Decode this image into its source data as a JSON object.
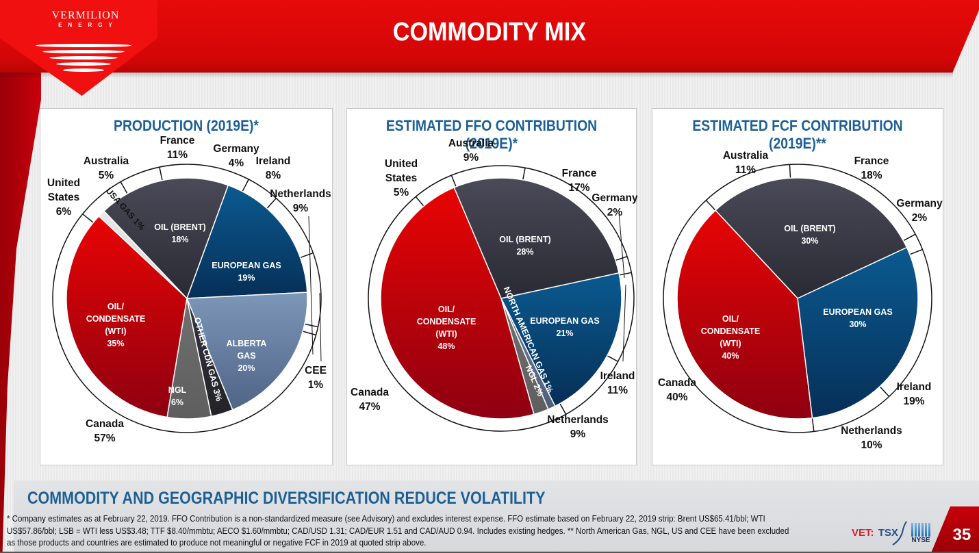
{
  "brand": {
    "name": "VERMILION",
    "sub": "ENERGY"
  },
  "header": {
    "title": "COMMODITY MIX"
  },
  "colors": {
    "title_blue": "#1c5f96",
    "header_red": "#dd0808",
    "oil_condensate": "#d10000",
    "oil_brent": "#3c3c4a",
    "european_gas": "#0d4677",
    "alberta_gas": "#6d84a6",
    "ngl": "#6b6b6b",
    "other_cdn_gas": "#2e2e38",
    "usa_gas": "#e4e4e4",
    "na_gas": "#5b6c86"
  },
  "chart_data": [
    {
      "type": "pie",
      "title": "PRODUCTION (2019E)*",
      "inner_series": {
        "name": "commodity",
        "slices": [
          {
            "label": "USA GAS",
            "value": 1,
            "display": "USA GAS 1%",
            "color_key": "usa_gas",
            "label_style": "rotated-dark"
          },
          {
            "label": "OIL (BRENT)",
            "value": 18,
            "display": "18%",
            "color_key": "oil_brent"
          },
          {
            "label": "EUROPEAN GAS",
            "value": 19,
            "display": "19%",
            "color_key": "european_gas"
          },
          {
            "label": "ALBERTA GAS",
            "value": 20,
            "display": "20%",
            "color_key": "alberta_gas"
          },
          {
            "label": "OTHER CDN GAS",
            "value": 3,
            "display": "OTHER CDN GAS 3%",
            "color_key": "other_cdn_gas",
            "label_style": "rotated"
          },
          {
            "label": "NGL",
            "value": 6,
            "display": "6%",
            "color_key": "ngl"
          },
          {
            "label": "OIL/ CONDENSATE (WTI)",
            "value": 35,
            "display": "35%",
            "color_key": "oil_condensate"
          }
        ]
      },
      "outer_series": {
        "name": "country",
        "slices": [
          {
            "label": "United States",
            "value": 6
          },
          {
            "label": "Australia",
            "value": 5
          },
          {
            "label": "France",
            "value": 11
          },
          {
            "label": "Germany",
            "value": 4
          },
          {
            "label": "Ireland",
            "value": 8
          },
          {
            "label": "Netherlands",
            "value": 9
          },
          {
            "label": "CEE",
            "value": 1
          },
          {
            "label": "Canada",
            "value": 57
          }
        ]
      }
    },
    {
      "type": "pie",
      "title": "ESTIMATED FFO CONTRIBUTION (2019E)*",
      "inner_series": {
        "name": "commodity",
        "slices": [
          {
            "label": "OIL (BRENT)",
            "value": 28,
            "display": "28%",
            "color_key": "oil_brent"
          },
          {
            "label": "EUROPEAN GAS",
            "value": 21,
            "display": "21%",
            "color_key": "european_gas"
          },
          {
            "label": "NORTH AMERICAN GAS",
            "value": 1,
            "display": "NORTH AMERICAN GAS 1%",
            "color_key": "na_gas",
            "label_style": "rotated"
          },
          {
            "label": "NGL",
            "value": 2,
            "display": "NGL 2%",
            "color_key": "ngl",
            "label_style": "rotated"
          },
          {
            "label": "OIL/ CONDENSATE (WTI)",
            "value": 48,
            "display": "48%",
            "color_key": "oil_condensate"
          }
        ]
      },
      "outer_series": {
        "name": "country",
        "slices": [
          {
            "label": "Australia",
            "value": 9
          },
          {
            "label": "France",
            "value": 17
          },
          {
            "label": "Germany",
            "value": 2
          },
          {
            "label": "Ireland",
            "value": 11
          },
          {
            "label": "Netherlands",
            "value": 9
          },
          {
            "label": "Canada",
            "value": 47
          },
          {
            "label": "United States",
            "value": 5
          }
        ]
      }
    },
    {
      "type": "pie",
      "title": "ESTIMATED FCF CONTRIBUTION (2019E)**",
      "inner_series": {
        "name": "commodity",
        "slices": [
          {
            "label": "OIL (BRENT)",
            "value": 30,
            "display": "30%",
            "color_key": "oil_brent"
          },
          {
            "label": "EUROPEAN GAS",
            "value": 30,
            "display": "30%",
            "color_key": "european_gas"
          },
          {
            "label": "OIL/ CONDENSATE (WTI)",
            "value": 40,
            "display": "40%",
            "color_key": "oil_condensate"
          }
        ]
      },
      "outer_series": {
        "name": "country",
        "slices": [
          {
            "label": "Australia",
            "value": 11
          },
          {
            "label": "France",
            "value": 18
          },
          {
            "label": "Germany",
            "value": 2
          },
          {
            "label": "Ireland",
            "value": 19
          },
          {
            "label": "Netherlands",
            "value": 10
          },
          {
            "label": "Canada",
            "value": 40
          }
        ]
      }
    }
  ],
  "panels": [
    {
      "title": "PRODUCTION (2019E)*",
      "inner_labels": [
        {
          "lines": [
            "OIL (BRENT)",
            "18%"
          ]
        },
        {
          "lines": [
            "EUROPEAN GAS",
            "19%"
          ]
        },
        {
          "lines": [
            "ALBERTA",
            "GAS",
            "20%"
          ]
        },
        {
          "lines": [
            "NGL",
            "6%"
          ]
        },
        {
          "lines": [
            "OIL/",
            "CONDENSATE",
            "(WTI)",
            "35%"
          ]
        },
        {
          "rotated": "USA GAS 1%"
        },
        {
          "rotated": "OTHER CDN GAS 3%"
        }
      ],
      "outer_labels": [
        {
          "lines": [
            "United",
            "States",
            "6%"
          ]
        },
        {
          "lines": [
            "Australia",
            "5%"
          ]
        },
        {
          "lines": [
            "France",
            "11%"
          ]
        },
        {
          "lines": [
            "Germany",
            "4%"
          ]
        },
        {
          "lines": [
            "Ireland",
            "8%"
          ]
        },
        {
          "lines": [
            "Netherlands",
            "9%"
          ]
        },
        {
          "lines": [
            "CEE",
            "1%"
          ]
        },
        {
          "lines": [
            "Canada",
            "57%"
          ]
        }
      ]
    },
    {
      "title": "ESTIMATED FFO CONTRIBUTION (2019E)*",
      "inner_labels": [
        {
          "lines": [
            "OIL (BRENT)",
            "28%"
          ]
        },
        {
          "lines": [
            "EUROPEAN GAS",
            "21%"
          ]
        },
        {
          "lines": [
            "OIL/",
            "CONDENSATE",
            "(WTI)",
            "48%"
          ]
        },
        {
          "rotated": "NORTH AMERICAN GAS 1%"
        },
        {
          "rotated": "NGL 2%"
        }
      ],
      "outer_labels": [
        {
          "lines": [
            "United",
            "States",
            "5%"
          ]
        },
        {
          "lines": [
            "Australia",
            "9%"
          ]
        },
        {
          "lines": [
            "France",
            "17%"
          ]
        },
        {
          "lines": [
            "Germany",
            "2%"
          ]
        },
        {
          "lines": [
            "Ireland",
            "11%"
          ]
        },
        {
          "lines": [
            "Netherlands",
            "9%"
          ]
        },
        {
          "lines": [
            "Canada",
            "47%"
          ]
        }
      ]
    },
    {
      "title": "ESTIMATED FCF CONTRIBUTION (2019E)**",
      "inner_labels": [
        {
          "lines": [
            "OIL (BRENT)",
            "30%"
          ]
        },
        {
          "lines": [
            "EUROPEAN GAS",
            "30%"
          ]
        },
        {
          "lines": [
            "OIL/",
            "CONDENSATE",
            "(WTI)",
            "40%"
          ]
        }
      ],
      "outer_labels": [
        {
          "lines": [
            "Australia",
            "11%"
          ]
        },
        {
          "lines": [
            "France",
            "18%"
          ]
        },
        {
          "lines": [
            "Germany",
            "2%"
          ]
        },
        {
          "lines": [
            "Ireland",
            "19%"
          ]
        },
        {
          "lines": [
            "Netherlands",
            "10%"
          ]
        },
        {
          "lines": [
            "Canada",
            "40%"
          ]
        }
      ]
    }
  ],
  "footer": {
    "tagline": "COMMODITY AND GEOGRAPHIC DIVERSIFICATION REDUCE VOLATILITY",
    "footnote_lines": [
      "* Company estimates as at February 22, 2019.  FFO Contribution is a non-standardized measure (see Advisory) and excludes interest expense. FFO estimate based on February 22, 2019 strip:  Brent US$65.41/bbl;  WTI",
      "US$57.86/bbl; LSB = WTI less US$3.48; TTF $8.40/mmbtu; AECO $1.60/mmbtu; CAD/USD 1.31; CAD/EUR 1.51 and CAD/AUD 0.94. Includes existing hedges. ** North American Gas, NGL, US and CEE have been excluded",
      "as those products and countries are estimated to produce not meaningful or negative FCF in 2019 at quoted strip above."
    ],
    "ticker_vet": "VET:",
    "ticker_tsx": "TSX",
    "ticker_nyse": "NYSE",
    "page_number": "35"
  }
}
